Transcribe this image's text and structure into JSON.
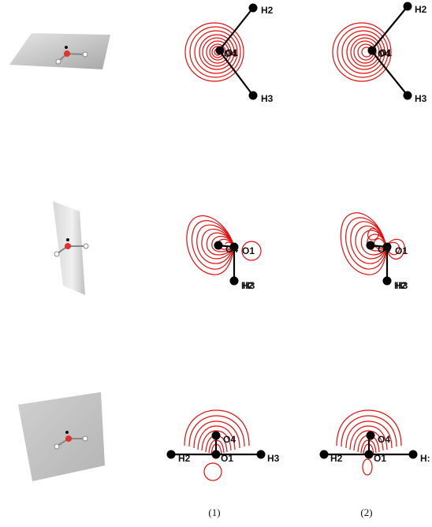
{
  "columns": {
    "col1_caption": "(1)",
    "col2_caption": "(2)"
  },
  "atom_labels": {
    "h2": "H2",
    "h3": "H3",
    "o1": "O1",
    "o4": "O4",
    "h3_cropped": "H:"
  },
  "colors": {
    "contour": "#e01010",
    "atom": "#000000",
    "plane": "#c8c8c8",
    "oxygen_3d": "#e03030"
  }
}
